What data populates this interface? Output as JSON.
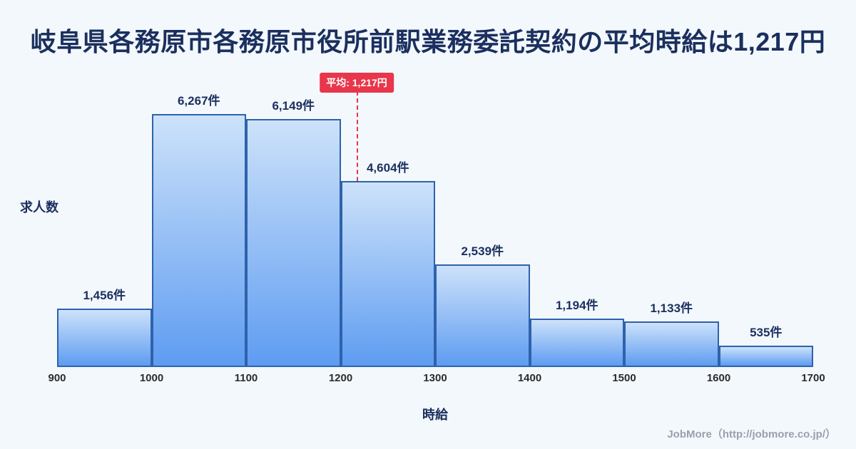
{
  "title": "岐阜県各務原市各務原市役所前駅業務委託契約の平均時給は1,217円",
  "chart_data": {
    "type": "bar",
    "title": "岐阜県各務原市各務原市役所前駅業務委託契約の平均時給は1,217円",
    "xlabel": "時給",
    "ylabel": "求人数",
    "xlim": [
      900,
      1700
    ],
    "ylim": [
      0,
      6600
    ],
    "bin_width": 100,
    "bin_edges": [
      900,
      1000,
      1100,
      1200,
      1300,
      1400,
      1500,
      1600,
      1700
    ],
    "x_tick_labels": [
      "900",
      "1000",
      "1100",
      "1200",
      "1300",
      "1400",
      "1500",
      "1600",
      "1700"
    ],
    "values": [
      1456,
      6267,
      6149,
      4604,
      2539,
      1194,
      1133,
      535
    ],
    "bar_labels": [
      "1,456件",
      "6,267件",
      "6,149件",
      "4,604件",
      "2,539件",
      "1,194件",
      "1,133件",
      "535件"
    ],
    "average": {
      "value": 1217,
      "label": "平均: 1,217円"
    },
    "grid": false,
    "legend": false,
    "colors": {
      "bar_gradient_top": "#cde2fa",
      "bar_gradient_bottom": "#5e9cf1",
      "bar_border": "#2e62ad",
      "average_accent": "#e8364a",
      "title_text": "#1b2f5e",
      "background": "#f3f8fd"
    }
  },
  "footer": {
    "credit": "JobMore（http://jobmore.co.jp/）"
  }
}
